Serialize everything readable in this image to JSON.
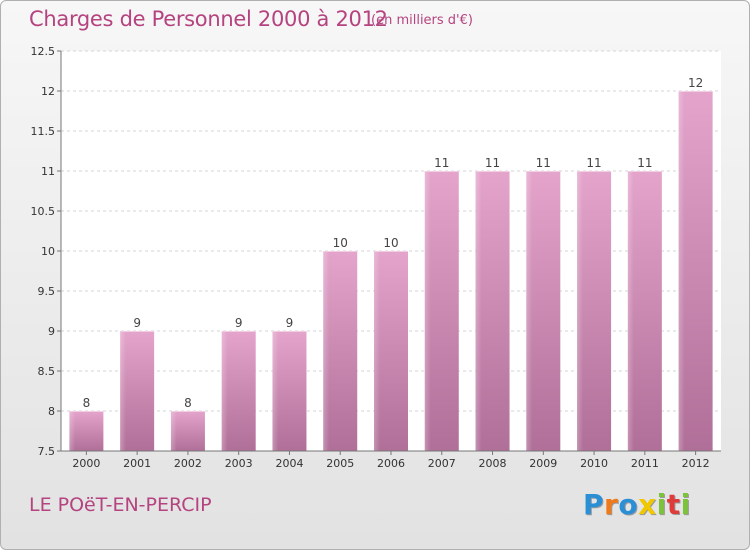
{
  "header": {
    "title": "Charges de Personnel 2000 à 2012",
    "subtitle": "(en milliers d'€)"
  },
  "footer": {
    "commune": "LE POëT-EN-PERCIP",
    "logo_letters": [
      "P",
      "r",
      "o",
      "x",
      "i",
      "t",
      "i"
    ],
    "logo_colors": [
      "#2b8fd6",
      "#f07a1a",
      "#2b8fd6",
      "#f0c800",
      "#7cc23a",
      "#e03b3b",
      "#7cc23a"
    ]
  },
  "chart_data": {
    "type": "bar",
    "categories": [
      "2000",
      "2001",
      "2002",
      "2003",
      "2004",
      "2005",
      "2006",
      "2007",
      "2008",
      "2009",
      "2010",
      "2011",
      "2012"
    ],
    "values": [
      8,
      9,
      8,
      9,
      9,
      10,
      10,
      11,
      11,
      11,
      11,
      11,
      12
    ],
    "data_labels": [
      "8",
      "9",
      "8",
      "9",
      "9",
      "10",
      "10",
      "11",
      "11",
      "11",
      "11",
      "11",
      "12"
    ],
    "ylim": [
      7.5,
      12.5
    ],
    "yticks": [
      7.5,
      8,
      8.5,
      9,
      9.5,
      10,
      10.5,
      11,
      11.5,
      12,
      12.5
    ],
    "ytick_labels": [
      "7.5",
      "8",
      "8.5",
      "9",
      "9.5",
      "10",
      "10.5",
      "11",
      "11.5",
      "12",
      "12.5"
    ],
    "grid": true,
    "bar_color": "#d98bb8",
    "bar_color_dark": "#b5719c"
  }
}
